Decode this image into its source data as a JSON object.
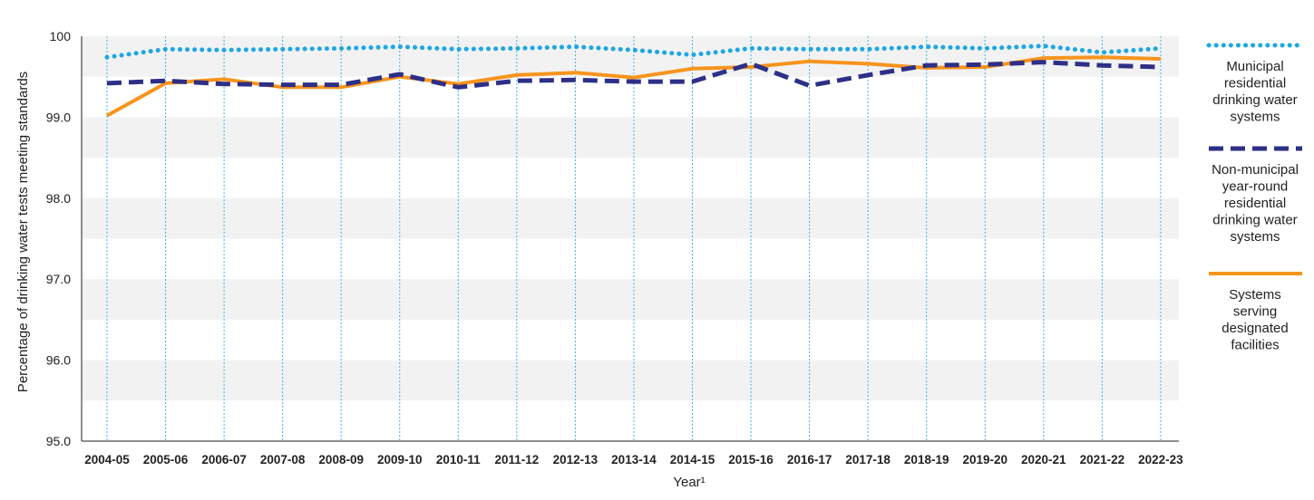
{
  "chart_data": {
    "type": "line",
    "title": "",
    "xlabel": "Year¹",
    "ylabel": "Percentage of drinking water tests meeting standards",
    "ylim": [
      95.0,
      100.0
    ],
    "yticks": [
      "95.0",
      "96.0",
      "97.0",
      "98.0",
      "99.0",
      "100"
    ],
    "categories": [
      "2004-05",
      "2005-06",
      "2006-07",
      "2007-08",
      "2008-09",
      "2009-10",
      "2010-11",
      "2011-12",
      "2012-13",
      "2013-14",
      "2014-15",
      "2015-16",
      "2016-17",
      "2017-18",
      "2018-19",
      "2019-20",
      "2020-21",
      "2021-22",
      "2022-23"
    ],
    "grid": "vertical dotted lines at categories; alternating horizontal bands",
    "legend_position": "right",
    "series": [
      {
        "name": "Municipal residential drinking water systems",
        "legend_lines": [
          "Municipal",
          "residential",
          "drinking water",
          "systems"
        ],
        "style": "dotted",
        "color": "#1ea7e1",
        "values": [
          99.74,
          99.84,
          99.83,
          99.84,
          99.85,
          99.87,
          99.84,
          99.85,
          99.87,
          99.83,
          99.77,
          99.85,
          99.84,
          99.84,
          99.87,
          99.85,
          99.88,
          99.8,
          99.85
        ]
      },
      {
        "name": "Non-municipal year-round residential drinking water systems",
        "legend_lines": [
          "Non-municipal",
          "year-round",
          "residential",
          "drinking water",
          "systems"
        ],
        "style": "dashed",
        "color": "#2e2f86",
        "values": [
          99.42,
          99.45,
          99.41,
          99.4,
          99.4,
          99.53,
          99.37,
          99.45,
          99.46,
          99.44,
          99.44,
          99.66,
          99.39,
          99.52,
          99.64,
          99.65,
          99.68,
          99.64,
          99.62
        ]
      },
      {
        "name": "Systems serving designated facilities",
        "legend_lines": [
          "Systems",
          "serving",
          "designated",
          "facilities"
        ],
        "style": "solid",
        "color": "#f7941d",
        "values": [
          99.02,
          99.42,
          99.47,
          99.37,
          99.37,
          99.5,
          99.41,
          99.52,
          99.55,
          99.49,
          99.6,
          99.62,
          99.69,
          99.66,
          99.61,
          99.62,
          99.73,
          99.74,
          99.72
        ]
      }
    ]
  }
}
